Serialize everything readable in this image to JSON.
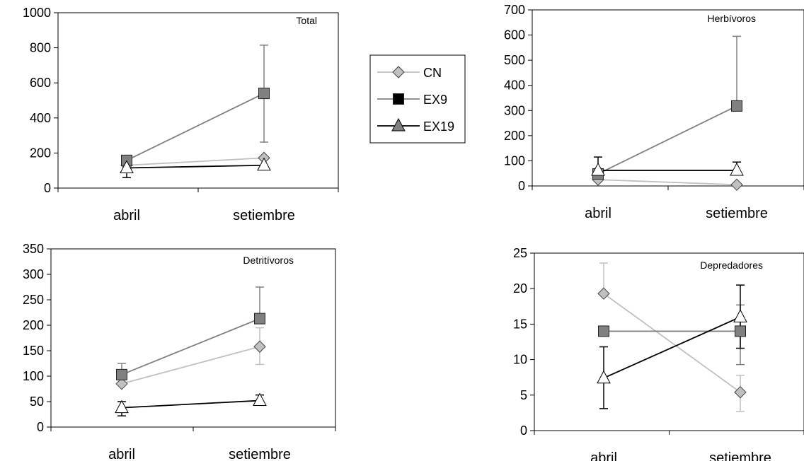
{
  "legend": {
    "entries": [
      {
        "label": "CN",
        "marker": "diamond"
      },
      {
        "label": "EX9",
        "marker": "square"
      },
      {
        "label": "EX19",
        "marker": "triangle"
      }
    ]
  },
  "chart_data": [
    {
      "type": "line",
      "title": "Total",
      "categories": [
        "abril",
        "setiembre"
      ],
      "ylim": [
        0,
        1000
      ],
      "yticks": [
        0,
        200,
        400,
        600,
        800,
        1000
      ],
      "series": [
        {
          "name": "CN",
          "values": [
            130,
            172
          ],
          "err_low": [
            null,
            null
          ],
          "err_high": [
            null,
            null
          ]
        },
        {
          "name": "EX9",
          "values": [
            158,
            540
          ],
          "err_low": [
            null,
            262
          ],
          "err_high": [
            null,
            815
          ]
        },
        {
          "name": "EX19",
          "values": [
            115,
            130
          ],
          "err_low": [
            60,
            null
          ],
          "err_high": [
            null,
            null
          ]
        }
      ]
    },
    {
      "type": "line",
      "title": "Herbívoros",
      "categories": [
        "abril",
        "setiembre"
      ],
      "ylim": [
        0,
        700
      ],
      "yticks": [
        0,
        100,
        200,
        300,
        400,
        500,
        600,
        700
      ],
      "series": [
        {
          "name": "CN",
          "values": [
            25,
            5
          ],
          "err_low": [
            null,
            null
          ],
          "err_high": [
            null,
            null
          ]
        },
        {
          "name": "EX9",
          "values": [
            48,
            318
          ],
          "err_low": [
            null,
            null
          ],
          "err_high": [
            null,
            595
          ]
        },
        {
          "name": "EX19",
          "values": [
            62,
            62
          ],
          "err_low": [
            null,
            null
          ],
          "err_high": [
            115,
            95
          ]
        }
      ]
    },
    {
      "type": "line",
      "title": "Detritívoros",
      "categories": [
        "abril",
        "setiembre"
      ],
      "ylim": [
        0,
        350
      ],
      "yticks": [
        0,
        50,
        100,
        150,
        200,
        250,
        300,
        350
      ],
      "series": [
        {
          "name": "CN",
          "values": [
            85,
            158
          ],
          "err_low": [
            null,
            123
          ],
          "err_high": [
            null,
            195
          ]
        },
        {
          "name": "EX9",
          "values": [
            103,
            213
          ],
          "err_low": [
            null,
            null
          ],
          "err_high": [
            125,
            275
          ]
        },
        {
          "name": "EX19",
          "values": [
            38,
            52
          ],
          "err_low": [
            22,
            null
          ],
          "err_high": [
            50,
            63
          ]
        }
      ]
    },
    {
      "type": "line",
      "title": "Depredadores",
      "categories": [
        "abril",
        "setiembre"
      ],
      "ylim": [
        0,
        25
      ],
      "yticks": [
        0,
        5,
        10,
        15,
        20,
        25
      ],
      "series": [
        {
          "name": "CN",
          "values": [
            19.3,
            5.4
          ],
          "err_low": [
            null,
            2.7
          ],
          "err_high": [
            23.6,
            7.8
          ]
        },
        {
          "name": "EX9",
          "values": [
            14,
            14
          ],
          "err_low": [
            null,
            9.3
          ],
          "err_high": [
            null,
            17.7
          ]
        },
        {
          "name": "EX19",
          "values": [
            7.4,
            16
          ],
          "err_low": [
            3.1,
            11.6
          ],
          "err_high": [
            11.8,
            20.5
          ]
        }
      ]
    }
  ]
}
